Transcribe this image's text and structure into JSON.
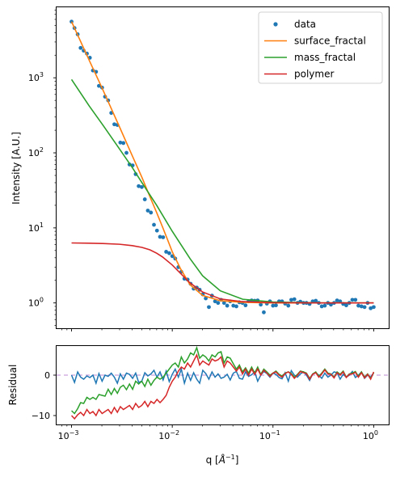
{
  "chart_data": [
    {
      "type": "line",
      "xscale": "log",
      "yscale": "log",
      "xlim": [
        0.00071,
        1.41
      ],
      "ylim": [
        0.46,
        8700
      ],
      "xticks": [],
      "yticks": [
        {
          "value": 1,
          "base": "10",
          "exp": "0"
        },
        {
          "value": 10,
          "base": "10",
          "exp": "1"
        },
        {
          "value": 100,
          "base": "10",
          "exp": "2"
        },
        {
          "value": 1000,
          "base": "10",
          "exp": "3"
        }
      ],
      "ylabel": "Intensity [A.U.]",
      "xlabel": "",
      "legend": {
        "placement": "top-right",
        "entries": [
          "data",
          "surface_fractal",
          "mass_fractal",
          "polymer"
        ]
      },
      "grid": false,
      "series": [
        {
          "name": "data",
          "kind": "scatter",
          "color": "#1f77b4",
          "points": [
            [
              0.001,
              5600
            ],
            [
              0.00107,
              4600
            ],
            [
              0.00115,
              3800
            ],
            [
              0.00123,
              2500
            ],
            [
              0.00132,
              2300
            ],
            [
              0.00142,
              2100
            ],
            [
              0.00152,
              1850
            ],
            [
              0.00163,
              1250
            ],
            [
              0.00175,
              1200
            ],
            [
              0.00187,
              780
            ],
            [
              0.00201,
              740
            ],
            [
              0.00215,
              560
            ],
            [
              0.00231,
              500
            ],
            [
              0.00248,
              340
            ],
            [
              0.00266,
              240
            ],
            [
              0.00285,
              235
            ],
            [
              0.00305,
              137
            ],
            [
              0.00327,
              135
            ],
            [
              0.00351,
              100
            ],
            [
              0.00376,
              70
            ],
            [
              0.00404,
              68
            ],
            [
              0.00433,
              52
            ],
            [
              0.00464,
              36
            ],
            [
              0.00498,
              35
            ],
            [
              0.00534,
              24
            ],
            [
              0.00572,
              17
            ],
            [
              0.00614,
              16
            ],
            [
              0.00658,
              11
            ],
            [
              0.00705,
              9.2
            ],
            [
              0.00756,
              7.6
            ],
            [
              0.00811,
              7.5
            ],
            [
              0.0087,
              4.8
            ],
            [
              0.00933,
              4.6
            ],
            [
              0.01,
              4.2
            ],
            [
              0.0107,
              3.9
            ],
            [
              0.0115,
              3.0
            ],
            [
              0.0123,
              2.6
            ],
            [
              0.0132,
              2.1
            ],
            [
              0.0142,
              2.05
            ],
            [
              0.0152,
              1.8
            ],
            [
              0.0163,
              1.55
            ],
            [
              0.0175,
              1.6
            ],
            [
              0.0187,
              1.5
            ],
            [
              0.0201,
              1.3
            ],
            [
              0.0215,
              1.15
            ],
            [
              0.0231,
              0.88
            ],
            [
              0.0248,
              1.25
            ],
            [
              0.0266,
              1.05
            ],
            [
              0.0285,
              1.0
            ],
            [
              0.0305,
              1.1
            ],
            [
              0.0327,
              1.0
            ],
            [
              0.0351,
              0.92
            ],
            [
              0.0376,
              1.05
            ],
            [
              0.0404,
              0.92
            ],
            [
              0.0433,
              0.9
            ],
            [
              0.0464,
              1.02
            ],
            [
              0.0498,
              1.0
            ],
            [
              0.0534,
              0.93
            ],
            [
              0.0572,
              1.05
            ],
            [
              0.0614,
              1.08
            ],
            [
              0.0658,
              1.07
            ],
            [
              0.0705,
              1.08
            ],
            [
              0.0756,
              0.95
            ],
            [
              0.0811,
              0.75
            ],
            [
              0.087,
              0.98
            ],
            [
              0.0933,
              1.05
            ],
            [
              0.1,
              0.92
            ],
            [
              0.107,
              0.93
            ],
            [
              0.115,
              1.05
            ],
            [
              0.123,
              1.05
            ],
            [
              0.132,
              0.98
            ],
            [
              0.142,
              0.92
            ],
            [
              0.152,
              1.1
            ],
            [
              0.163,
              1.12
            ],
            [
              0.175,
              1.0
            ],
            [
              0.187,
              1.04
            ],
            [
              0.201,
              1.0
            ],
            [
              0.215,
              1.0
            ],
            [
              0.231,
              0.97
            ],
            [
              0.248,
              1.05
            ],
            [
              0.266,
              1.07
            ],
            [
              0.285,
              1.0
            ],
            [
              0.305,
              0.9
            ],
            [
              0.327,
              0.92
            ],
            [
              0.351,
              1.0
            ],
            [
              0.376,
              0.95
            ],
            [
              0.404,
              1.0
            ],
            [
              0.433,
              1.08
            ],
            [
              0.464,
              1.05
            ],
            [
              0.498,
              0.97
            ],
            [
              0.534,
              0.93
            ],
            [
              0.572,
              1.0
            ],
            [
              0.614,
              1.1
            ],
            [
              0.658,
              1.1
            ],
            [
              0.705,
              0.92
            ],
            [
              0.756,
              0.9
            ],
            [
              0.811,
              0.88
            ],
            [
              0.87,
              1.0
            ],
            [
              0.933,
              0.85
            ],
            [
              1.0,
              0.88
            ]
          ]
        },
        {
          "name": "surface_fractal",
          "kind": "line",
          "color": "#ff7f0e",
          "points": [
            [
              0.001,
              5600
            ],
            [
              0.0015,
              1700
            ],
            [
              0.002,
              740
            ],
            [
              0.003,
              220
            ],
            [
              0.004,
              92
            ],
            [
              0.005,
              47
            ],
            [
              0.006,
              26
            ],
            [
              0.007,
              16
            ],
            [
              0.008,
              10.3
            ],
            [
              0.009,
              6.9
            ],
            [
              0.01,
              4.8
            ],
            [
              0.012,
              2.9
            ],
            [
              0.015,
              1.75
            ],
            [
              0.02,
              1.26
            ],
            [
              0.03,
              1.07
            ],
            [
              0.05,
              1.02
            ],
            [
              0.1,
              1.0
            ],
            [
              0.3,
              1.0
            ],
            [
              1.0,
              1.0
            ]
          ]
        },
        {
          "name": "mass_fractal",
          "kind": "line",
          "color": "#2ca02c",
          "points": [
            [
              0.001,
              950
            ],
            [
              0.0015,
              420
            ],
            [
              0.002,
              245
            ],
            [
              0.003,
              112
            ],
            [
              0.004,
              64
            ],
            [
              0.005,
              40
            ],
            [
              0.007,
              20
            ],
            [
              0.01,
              9.0
            ],
            [
              0.015,
              3.9
            ],
            [
              0.02,
              2.3
            ],
            [
              0.03,
              1.45
            ],
            [
              0.05,
              1.12
            ],
            [
              0.1,
              1.03
            ],
            [
              0.3,
              1.0
            ],
            [
              1.0,
              1.0
            ]
          ]
        },
        {
          "name": "polymer",
          "kind": "line",
          "color": "#d62728",
          "points": [
            [
              0.001,
              6.3
            ],
            [
              0.0015,
              6.25
            ],
            [
              0.002,
              6.2
            ],
            [
              0.003,
              6.05
            ],
            [
              0.004,
              5.8
            ],
            [
              0.005,
              5.5
            ],
            [
              0.006,
              5.1
            ],
            [
              0.007,
              4.6
            ],
            [
              0.008,
              4.1
            ],
            [
              0.01,
              3.2
            ],
            [
              0.012,
              2.5
            ],
            [
              0.015,
              1.85
            ],
            [
              0.02,
              1.4
            ],
            [
              0.03,
              1.13
            ],
            [
              0.05,
              1.04
            ],
            [
              0.1,
              1.01
            ],
            [
              0.3,
              1.0
            ],
            [
              1.0,
              1.0
            ]
          ]
        }
      ]
    },
    {
      "type": "line",
      "xscale": "log",
      "yscale": "linear",
      "xlim": [
        0.00071,
        1.41
      ],
      "ylim": [
        -12.2,
        7.2
      ],
      "xticks": [
        {
          "value": 0.001,
          "base": "10",
          "exp": "−3"
        },
        {
          "value": 0.01,
          "base": "10",
          "exp": "−2"
        },
        {
          "value": 0.1,
          "base": "10",
          "exp": "−1"
        },
        {
          "value": 1,
          "base": "10",
          "exp": "0"
        }
      ],
      "yticks": [
        {
          "value": 0,
          "label": "0"
        },
        {
          "value": -10,
          "label": "−10"
        }
      ],
      "xlabel_main": "q [",
      "xlabel_unit": "Å",
      "xlabel_exp": "−1",
      "xlabel_close": "]",
      "ylabel": "Residual",
      "grid": false,
      "reference_line": {
        "y": 0,
        "color": "#c9a0dc",
        "style": "dashed"
      },
      "series": [
        {
          "name": "surface_fractal",
          "color": "#1f77b4",
          "values": [
            0.0,
            -1.8,
            0.8,
            -0.5,
            -1.0,
            -0.2,
            -0.6,
            0.0,
            -2.0,
            0.4,
            -1.5,
            0.0,
            -0.3,
            0.5,
            -0.5,
            -2.0,
            0.3,
            -1.0,
            0.5,
            0.2,
            -0.8,
            0.5,
            -1.8,
            -1.5,
            0.6,
            -0.2,
            0.3,
            1.2,
            -0.5,
            0.8,
            -1.2,
            1.0,
            -1.6,
            0.2,
            1.5,
            -0.5,
            1.5,
            -2.0,
            0.5,
            -1.3,
            0.6,
            -1.0,
            -2.0,
            1.2,
            0.4,
            -1.0,
            0.8,
            -0.5,
            0.3,
            -0.8,
            -0.5,
            0.2,
            -1.2,
            0.5,
            0.9,
            -0.8,
            -1.0,
            0.8,
            -0.3,
            0.1,
            0.8,
            -1.5,
            0.0,
            0.9,
            0.4,
            -0.5,
            0.5,
            0.2,
            -0.6,
            -0.9,
            0.6,
            -1.5,
            1.1,
            0.0,
            -0.5,
            0.3,
            0.8,
            0.0,
            -1.3,
            0.3,
            0.6,
            0.0,
            -0.8,
            0.5,
            -0.5,
            0.0,
            0.8,
            0.6,
            -1.0,
            0.2,
            -0.5,
            0.0,
            0.9,
            -0.6,
            0.0,
            0.8,
            -0.8,
            0.0,
            -0.5,
            0.6
          ]
        },
        {
          "name": "mass_fractal",
          "color": "#2ca02c",
          "values": [
            -8.8,
            -9.5,
            -8.3,
            -6.8,
            -7.0,
            -5.5,
            -6.0,
            -5.5,
            -6.0,
            -4.8,
            -5.0,
            -5.2,
            -3.5,
            -4.8,
            -3.3,
            -4.5,
            -3.0,
            -2.5,
            -3.6,
            -2.2,
            -3.5,
            -1.5,
            -2.2,
            -1.5,
            -2.8,
            -1.0,
            -2.5,
            -1.3,
            -0.5,
            -1.0,
            -0.5,
            0.5,
            1.5,
            2.5,
            3.0,
            2.0,
            4.5,
            3.0,
            4.0,
            5.5,
            5.0,
            6.8,
            4.2,
            5.0,
            4.5,
            3.5,
            5.0,
            4.5,
            5.5,
            5.8,
            3.0,
            4.5,
            4.2,
            2.8,
            1.5,
            2.5,
            0.8,
            1.8,
            0.5,
            2.0,
            0.5,
            2.0,
            0.2,
            1.5,
            0.8,
            0.0,
            0.5,
            1.0,
            0.2,
            -0.2,
            0.5,
            0.8,
            0.4,
            -0.5,
            0.2,
            1.0,
            0.8,
            0.5,
            -0.8,
            0.3,
            0.8,
            -0.3,
            0.5,
            1.5,
            0.5,
            0.3,
            -0.5,
            0.8,
            0.2,
            1.0,
            -0.5,
            0.3,
            0.5,
            0.9,
            -0.3,
            0.8,
            -0.5,
            0.3,
            -0.8,
            0.6
          ]
        },
        {
          "name": "polymer",
          "color": "#d62728",
          "values": [
            -10.0,
            -10.8,
            -9.8,
            -9.2,
            -10.0,
            -8.5,
            -9.5,
            -9.0,
            -10.0,
            -8.5,
            -9.5,
            -9.0,
            -8.5,
            -9.5,
            -8.0,
            -9.2,
            -7.8,
            -8.5,
            -8.0,
            -7.5,
            -8.5,
            -7.0,
            -8.0,
            -7.5,
            -6.5,
            -7.8,
            -6.5,
            -7.0,
            -6.0,
            -6.8,
            -6.0,
            -5.0,
            -3.0,
            -1.5,
            -0.5,
            1.0,
            2.0,
            1.5,
            3.0,
            2.0,
            3.5,
            5.0,
            2.5,
            3.5,
            3.0,
            2.5,
            4.0,
            3.5,
            3.8,
            4.5,
            2.0,
            3.5,
            3.0,
            2.0,
            1.0,
            2.0,
            0.3,
            1.5,
            0.0,
            1.5,
            0.2,
            1.5,
            0.0,
            1.2,
            0.5,
            -0.3,
            0.5,
            0.8,
            0.0,
            -0.5,
            0.4,
            0.8,
            0.2,
            -0.8,
            0.0,
            0.9,
            0.6,
            0.4,
            -1.0,
            0.2,
            0.6,
            -0.5,
            0.3,
            1.3,
            0.3,
            0.2,
            -0.7,
            0.6,
            0.0,
            0.8,
            -0.6,
            0.2,
            0.3,
            0.7,
            -0.5,
            0.6,
            -0.7,
            0.2,
            -1.0,
            0.8
          ]
        }
      ]
    }
  ]
}
